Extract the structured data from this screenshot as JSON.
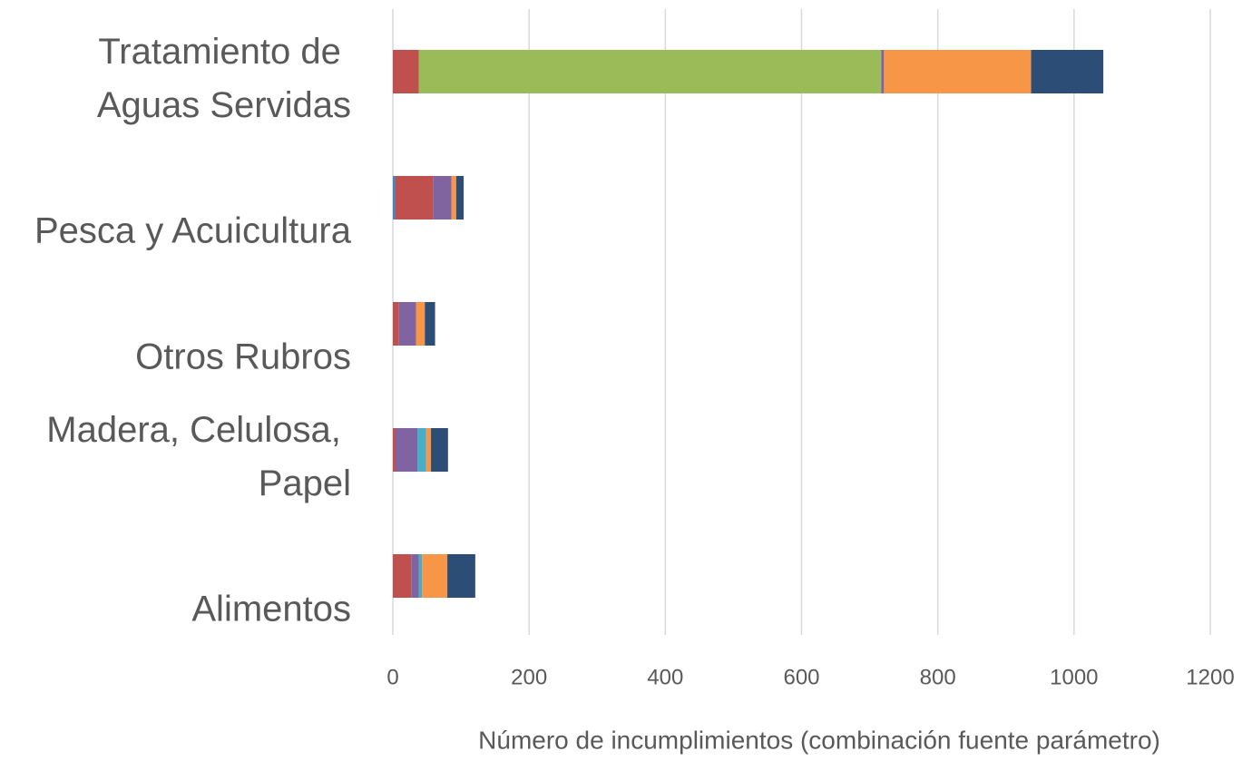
{
  "chart_data": {
    "type": "stacked-barh",
    "x_label": "Número de incumplimientos (combinación fuente parámetro)",
    "categories": [
      "Tratamiento de Aguas Servidas",
      "Pesca y Acuicultura",
      "Otros Rubros",
      "Madera, Celulosa, Papel",
      "Alimentos"
    ],
    "series": [
      {
        "color": "#4f81bd",
        "values": [
          0,
          4,
          0,
          0,
          0
        ]
      },
      {
        "color": "#c0504d",
        "values": [
          38,
          55,
          9,
          4,
          27
        ]
      },
      {
        "color": "#9bbb59",
        "values": [
          679,
          0,
          0,
          0,
          0
        ]
      },
      {
        "color": "#8064a2",
        "values": [
          4,
          27,
          25,
          32,
          11
        ]
      },
      {
        "color": "#4bacc6",
        "values": [
          0,
          0,
          0,
          13,
          5
        ]
      },
      {
        "color": "#f79646",
        "values": [
          216,
          7,
          13,
          7,
          37
        ]
      },
      {
        "color": "#2c4d75",
        "values": [
          106,
          11,
          15,
          25,
          41
        ]
      }
    ],
    "xlim": [
      0,
      1200
    ],
    "xticks": [
      0,
      200,
      400,
      600,
      800,
      1000,
      1200
    ],
    "grid": true
  }
}
